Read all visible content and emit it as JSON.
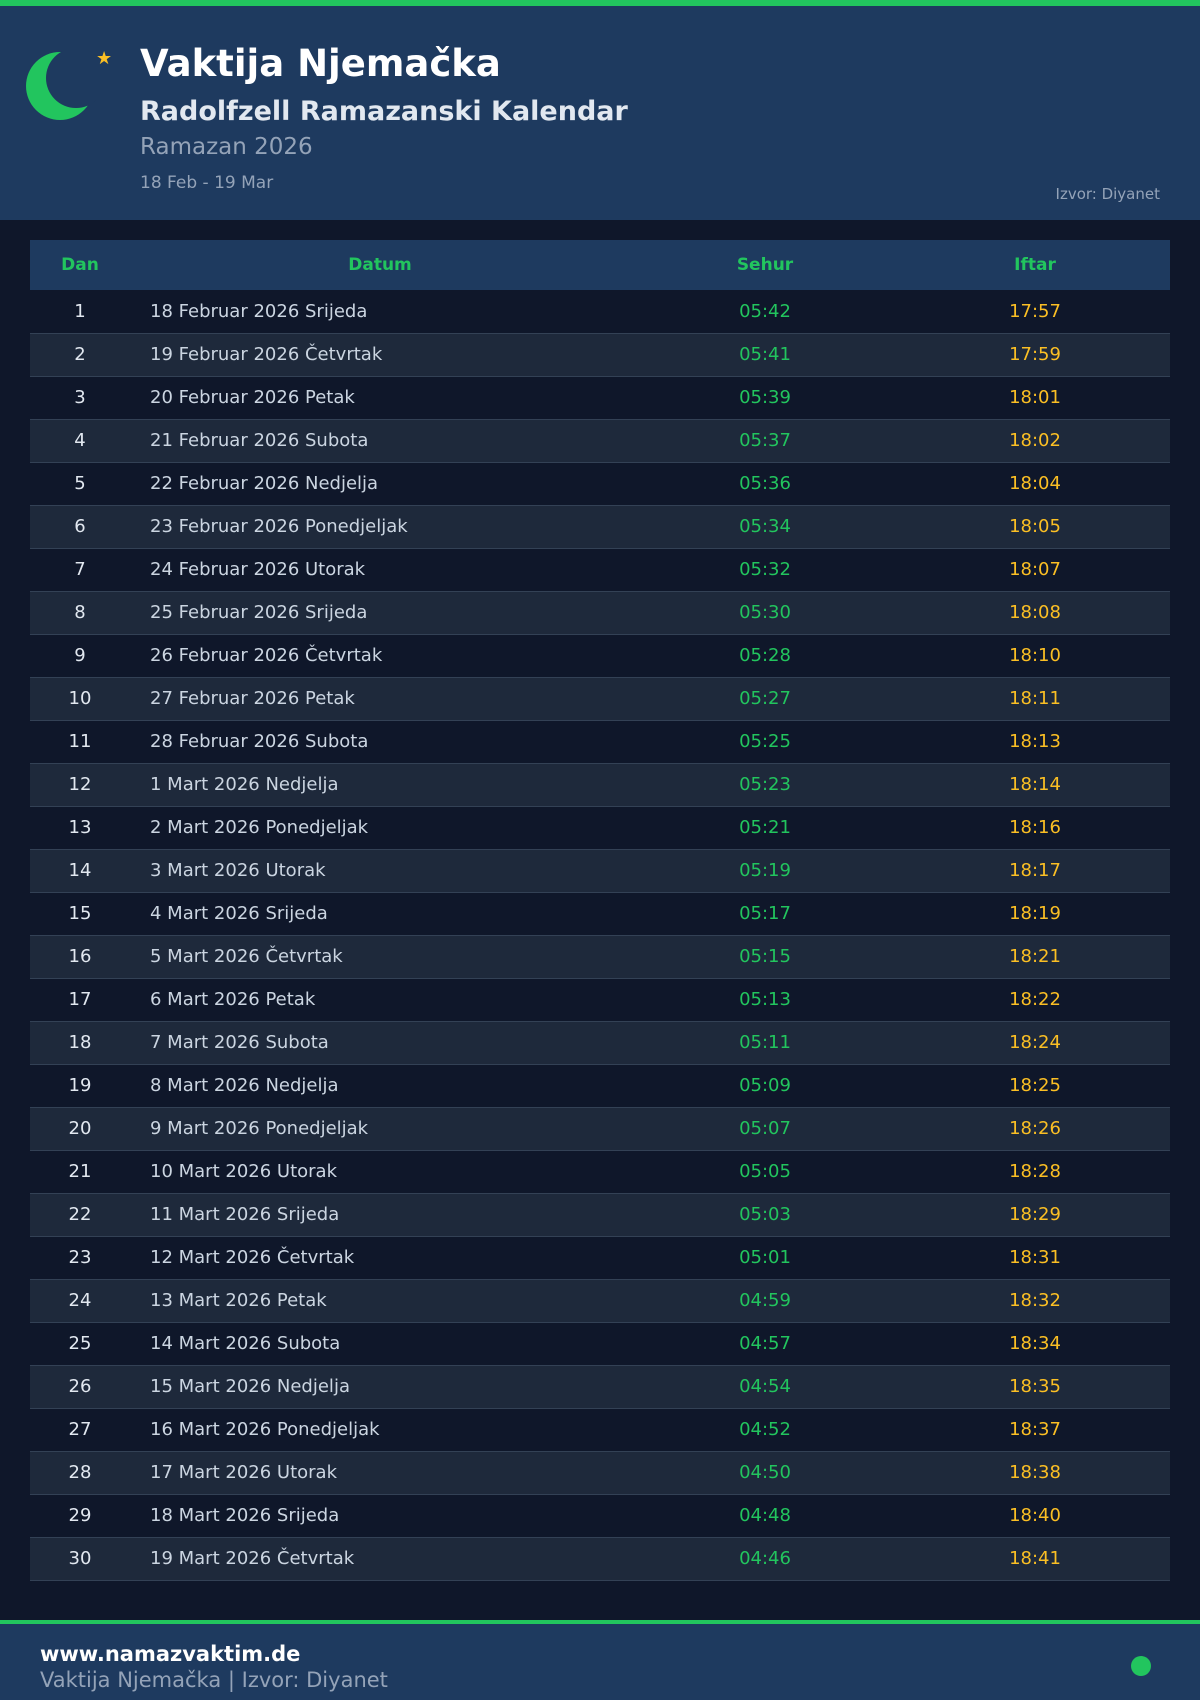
{
  "colors": {
    "accent": "#22c55e",
    "iftar": "#fbbf24",
    "header_bg": "#1e3a5f",
    "page_bg": "#0f172a"
  },
  "header": {
    "icon": "crescent-star-icon",
    "title": "Vaktija Njemačka",
    "subtitle": "Radolfzell Ramazanski Kalendar",
    "period": "Ramazan 2026",
    "range": "18 Feb - 19 Mar",
    "source": "Izvor: Diyanet"
  },
  "table": {
    "columns": [
      "Dan",
      "Datum",
      "Sehur",
      "Iftar"
    ],
    "rows": [
      [
        "1",
        "18 Februar 2026 Srijeda",
        "05:42",
        "17:57"
      ],
      [
        "2",
        "19 Februar 2026 Četvrtak",
        "05:41",
        "17:59"
      ],
      [
        "3",
        "20 Februar 2026 Petak",
        "05:39",
        "18:01"
      ],
      [
        "4",
        "21 Februar 2026 Subota",
        "05:37",
        "18:02"
      ],
      [
        "5",
        "22 Februar 2026 Nedjelja",
        "05:36",
        "18:04"
      ],
      [
        "6",
        "23 Februar 2026 Ponedjeljak",
        "05:34",
        "18:05"
      ],
      [
        "7",
        "24 Februar 2026 Utorak",
        "05:32",
        "18:07"
      ],
      [
        "8",
        "25 Februar 2026 Srijeda",
        "05:30",
        "18:08"
      ],
      [
        "9",
        "26 Februar 2026 Četvrtak",
        "05:28",
        "18:10"
      ],
      [
        "10",
        "27 Februar 2026 Petak",
        "05:27",
        "18:11"
      ],
      [
        "11",
        "28 Februar 2026 Subota",
        "05:25",
        "18:13"
      ],
      [
        "12",
        "1 Mart 2026 Nedjelja",
        "05:23",
        "18:14"
      ],
      [
        "13",
        "2 Mart 2026 Ponedjeljak",
        "05:21",
        "18:16"
      ],
      [
        "14",
        "3 Mart 2026 Utorak",
        "05:19",
        "18:17"
      ],
      [
        "15",
        "4 Mart 2026 Srijeda",
        "05:17",
        "18:19"
      ],
      [
        "16",
        "5 Mart 2026 Četvrtak",
        "05:15",
        "18:21"
      ],
      [
        "17",
        "6 Mart 2026 Petak",
        "05:13",
        "18:22"
      ],
      [
        "18",
        "7 Mart 2026 Subota",
        "05:11",
        "18:24"
      ],
      [
        "19",
        "8 Mart 2026 Nedjelja",
        "05:09",
        "18:25"
      ],
      [
        "20",
        "9 Mart 2026 Ponedjeljak",
        "05:07",
        "18:26"
      ],
      [
        "21",
        "10 Mart 2026 Utorak",
        "05:05",
        "18:28"
      ],
      [
        "22",
        "11 Mart 2026 Srijeda",
        "05:03",
        "18:29"
      ],
      [
        "23",
        "12 Mart 2026 Četvrtak",
        "05:01",
        "18:31"
      ],
      [
        "24",
        "13 Mart 2026 Petak",
        "04:59",
        "18:32"
      ],
      [
        "25",
        "14 Mart 2026 Subota",
        "04:57",
        "18:34"
      ],
      [
        "26",
        "15 Mart 2026 Nedjelja",
        "04:54",
        "18:35"
      ],
      [
        "27",
        "16 Mart 2026 Ponedjeljak",
        "04:52",
        "18:37"
      ],
      [
        "28",
        "17 Mart 2026 Utorak",
        "04:50",
        "18:38"
      ],
      [
        "29",
        "18 Mart 2026 Srijeda",
        "04:48",
        "18:40"
      ],
      [
        "30",
        "19 Mart 2026 Četvrtak",
        "04:46",
        "18:41"
      ]
    ]
  },
  "footer": {
    "website": "www.namazvaktim.de",
    "caption": "Vaktija Njemačka | Izvor: Diyanet",
    "status_icon": "green-dot-icon"
  }
}
